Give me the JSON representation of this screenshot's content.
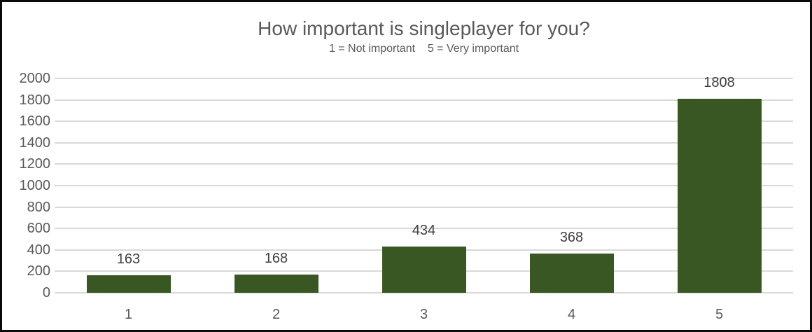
{
  "chart_data": {
    "type": "bar",
    "title": "How important is singleplayer for you?",
    "subtitle": "1 = Not important    5 = Very important",
    "categories": [
      "1",
      "2",
      "3",
      "4",
      "5"
    ],
    "values": [
      163,
      168,
      434,
      368,
      1808
    ],
    "data_labels": [
      "163",
      "168",
      "434",
      "368",
      "1808"
    ],
    "ylim": [
      0,
      2000
    ],
    "yticks": [
      0,
      200,
      400,
      600,
      800,
      1000,
      1200,
      1400,
      1600,
      1800,
      2000
    ],
    "xlabel": "",
    "ylabel": "",
    "grid": true,
    "legend_position": "none",
    "colors": {
      "bar": "#385723",
      "gridline": "#d9d9d9",
      "title_text": "#595959",
      "subtitle_text": "#595959",
      "axis_text": "#595959",
      "data_label_text": "#404040",
      "frame_border": "#0a0a0a",
      "background": "#ffffff"
    }
  }
}
